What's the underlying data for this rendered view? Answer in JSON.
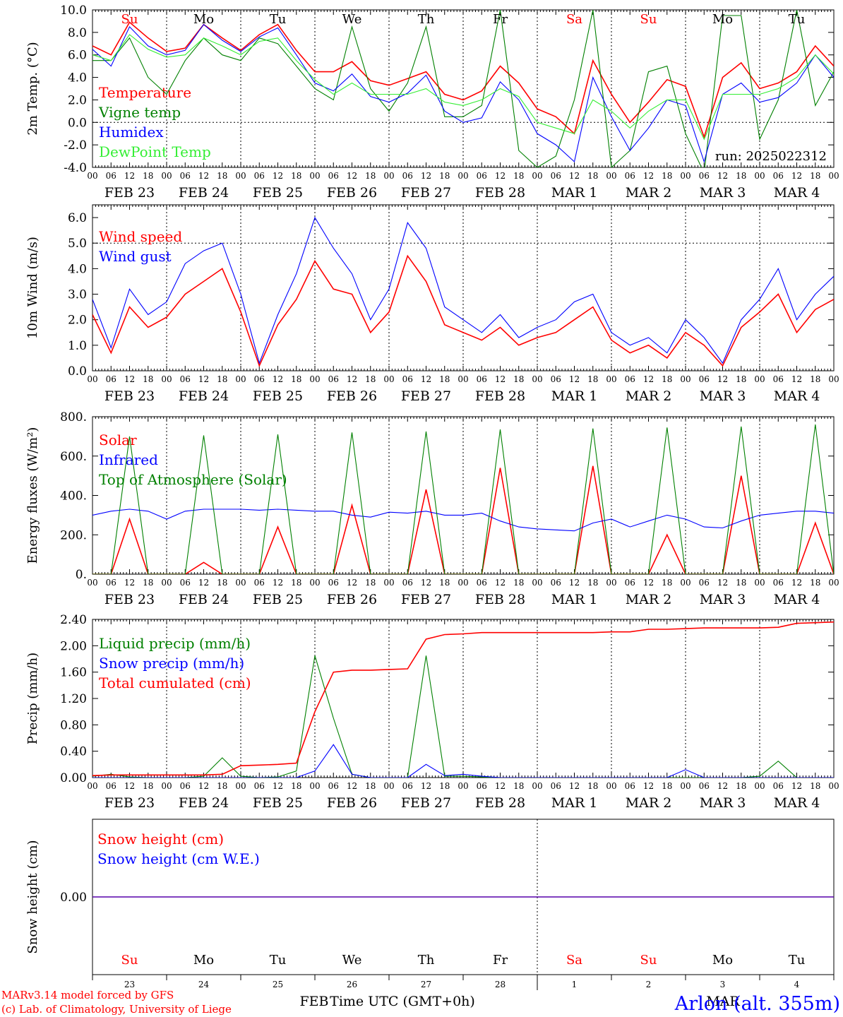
{
  "axis_x": {
    "tick_labels": [
      "00",
      "06",
      "12",
      "18"
    ],
    "date_labels": [
      "FEB 23",
      "FEB 24",
      "FEB 25",
      "FEB 26",
      "FEB 27",
      "FEB 28",
      "MAR  1",
      "MAR  2",
      "MAR  3",
      "MAR  4"
    ],
    "weekdays": [
      "Su",
      "Mo",
      "Tu",
      "We",
      "Th",
      "Fr",
      "Sa",
      "Su",
      "Mo",
      "Tu"
    ],
    "weekend_flags": [
      true,
      false,
      false,
      false,
      false,
      false,
      true,
      true,
      false,
      false
    ],
    "day_numbers": [
      "23",
      "24",
      "25",
      "26",
      "27",
      "28",
      "1",
      "2",
      "3",
      "4"
    ],
    "xlabel": "Time UTC (GMT+0h)",
    "month_labels": [
      "FEB",
      "MAR"
    ]
  },
  "footer": {
    "credit_line1": "MARv3.14 model forced by GFS",
    "credit_line2": "(c) Lab. of Climatology, University of Liege",
    "location": "Arlon (alt. 355m)"
  },
  "colors": {
    "red": "#ff0000",
    "green": "#008000",
    "blue": "#0000ff",
    "lime": "#33ee33",
    "black": "#000000"
  },
  "chart_data": [
    {
      "type": "line",
      "ylabel": "2m Temp. (°C)",
      "ylim": [
        -4,
        10
      ],
      "y_ticks": [
        "-4.0",
        "-2.0",
        "0.0",
        "2.0",
        "4.0",
        "6.0",
        "8.0",
        "10.0"
      ],
      "ref_lines": [
        0
      ],
      "annotation": "run: 2025022312",
      "x": [
        0,
        6,
        12,
        18,
        24,
        30,
        36,
        42,
        48,
        54,
        60,
        66,
        72,
        78,
        84,
        90,
        96,
        102,
        108,
        114,
        120,
        126,
        132,
        138,
        144,
        150,
        156,
        162,
        168,
        174,
        180,
        186,
        192,
        198,
        204,
        210,
        216,
        222,
        228,
        234,
        240
      ],
      "series": [
        {
          "name": "Temperature",
          "color": "red",
          "values": [
            6.8,
            6.0,
            8.9,
            7.5,
            6.3,
            6.6,
            8.7,
            7.5,
            6.4,
            7.8,
            8.7,
            6.4,
            4.5,
            4.5,
            5.4,
            3.7,
            3.3,
            3.9,
            4.5,
            2.5,
            2.0,
            2.8,
            5.0,
            3.5,
            1.2,
            0.5,
            -1.0,
            5.5,
            2.5,
            0.0,
            1.8,
            3.8,
            3.2,
            -1.3,
            4.0,
            5.3,
            3.0,
            3.5,
            4.5,
            6.8,
            5.0
          ]
        },
        {
          "name": "Vigne temp",
          "color": "green",
          "values": [
            5.5,
            5.5,
            7.5,
            4.0,
            2.5,
            5.5,
            7.5,
            6.0,
            5.5,
            7.5,
            7.0,
            5.0,
            3.0,
            2.0,
            8.5,
            3.0,
            1.0,
            3.5,
            8.5,
            0.5,
            0.5,
            1.5,
            10.0,
            -2.5,
            -4.0,
            -3.0,
            2.0,
            10.0,
            -4.0,
            -2.5,
            4.5,
            5.0,
            -1.0,
            -4.5,
            9.5,
            9.5,
            -1.5,
            2.0,
            10.0,
            1.5,
            4.5
          ]
        },
        {
          "name": "Humidex",
          "color": "blue",
          "values": [
            6.5,
            5.0,
            8.5,
            6.8,
            6.0,
            6.4,
            8.7,
            7.3,
            6.3,
            7.6,
            8.4,
            6.0,
            3.5,
            2.8,
            4.3,
            2.3,
            1.8,
            2.6,
            4.2,
            1.0,
            0.0,
            0.4,
            3.6,
            2.0,
            -1.0,
            -2.0,
            -3.5,
            4.0,
            0.5,
            -2.5,
            -0.5,
            2.0,
            1.5,
            -3.5,
            2.5,
            3.5,
            1.8,
            2.2,
            3.5,
            6.0,
            4.0
          ]
        },
        {
          "name": "DewPoint Temp",
          "color": "lime",
          "values": [
            6.0,
            5.5,
            7.8,
            6.5,
            5.8,
            6.0,
            7.5,
            6.8,
            6.0,
            7.2,
            7.5,
            5.5,
            3.8,
            2.5,
            3.5,
            2.5,
            2.5,
            2.5,
            3.0,
            1.8,
            1.5,
            2.0,
            3.0,
            2.3,
            0.0,
            -0.5,
            -1.0,
            2.0,
            1.0,
            -0.5,
            1.0,
            2.0,
            2.0,
            -1.5,
            2.5,
            2.5,
            2.5,
            3.0,
            4.0,
            6.0,
            4.3
          ]
        }
      ]
    },
    {
      "type": "line",
      "ylabel": "10m Wind (m/s)",
      "ylim": [
        0,
        6.5
      ],
      "y_ticks": [
        "0.0",
        "1.0",
        "2.0",
        "3.0",
        "4.0",
        "5.0",
        "6.0"
      ],
      "ref_lines": [
        5
      ],
      "x": [
        0,
        6,
        12,
        18,
        24,
        30,
        36,
        42,
        48,
        54,
        60,
        66,
        72,
        78,
        84,
        90,
        96,
        102,
        108,
        114,
        120,
        126,
        132,
        138,
        144,
        150,
        156,
        162,
        168,
        174,
        180,
        186,
        192,
        198,
        204,
        210,
        216,
        222,
        228,
        234,
        240
      ],
      "series": [
        {
          "name": "Wind speed",
          "color": "red",
          "values": [
            2.2,
            0.7,
            2.5,
            1.7,
            2.1,
            3.0,
            3.5,
            4.0,
            2.3,
            0.2,
            1.8,
            2.8,
            4.3,
            3.2,
            3.0,
            1.5,
            2.3,
            4.5,
            3.5,
            1.8,
            1.5,
            1.2,
            1.7,
            1.0,
            1.3,
            1.5,
            2.0,
            2.5,
            1.2,
            0.7,
            1.0,
            0.5,
            1.5,
            1.0,
            0.2,
            1.7,
            2.3,
            3.0,
            1.5,
            2.4,
            2.8
          ]
        },
        {
          "name": "Wind gust",
          "color": "blue",
          "values": [
            2.8,
            0.9,
            3.2,
            2.2,
            2.7,
            4.2,
            4.7,
            5.0,
            3.0,
            0.3,
            2.2,
            3.8,
            6.0,
            4.8,
            3.8,
            2.0,
            3.2,
            5.8,
            4.8,
            2.5,
            2.0,
            1.5,
            2.2,
            1.3,
            1.7,
            2.0,
            2.7,
            3.0,
            1.5,
            1.0,
            1.3,
            0.7,
            2.0,
            1.3,
            0.3,
            2.0,
            2.8,
            4.0,
            2.0,
            3.0,
            3.7
          ]
        }
      ]
    },
    {
      "type": "line",
      "ylabel": "Energy fluxes (W/m²)",
      "ylim": [
        0,
        800
      ],
      "y_ticks": [
        "0.",
        "200.",
        "400.",
        "600.",
        "800."
      ],
      "x": [
        0,
        6,
        12,
        18,
        24,
        30,
        36,
        42,
        48,
        54,
        60,
        66,
        72,
        78,
        84,
        90,
        96,
        102,
        108,
        114,
        120,
        126,
        132,
        138,
        144,
        150,
        156,
        162,
        168,
        174,
        180,
        186,
        192,
        198,
        204,
        210,
        216,
        222,
        228,
        234,
        240
      ],
      "series": [
        {
          "name": "Solar",
          "color": "red",
          "values": [
            0,
            0,
            280,
            0,
            0,
            0,
            60,
            0,
            0,
            0,
            240,
            0,
            0,
            0,
            350,
            0,
            0,
            0,
            430,
            0,
            0,
            0,
            540,
            0,
            0,
            0,
            0,
            550,
            0,
            0,
            0,
            200,
            0,
            0,
            0,
            500,
            0,
            0,
            0,
            260,
            0
          ]
        },
        {
          "name": "Infrared",
          "color": "blue",
          "values": [
            300,
            320,
            330,
            320,
            280,
            320,
            330,
            330,
            330,
            325,
            330,
            325,
            320,
            320,
            300,
            290,
            315,
            310,
            320,
            300,
            300,
            310,
            270,
            240,
            230,
            225,
            220,
            260,
            280,
            240,
            270,
            300,
            280,
            240,
            235,
            270,
            300,
            310,
            320,
            320,
            310
          ]
        },
        {
          "name": "Top of Atmosphere (Solar)",
          "color": "green",
          "values": [
            0,
            0,
            700,
            0,
            0,
            0,
            705,
            0,
            0,
            0,
            710,
            0,
            0,
            0,
            720,
            0,
            0,
            0,
            725,
            0,
            0,
            0,
            735,
            0,
            0,
            0,
            0,
            740,
            0,
            0,
            0,
            745,
            0,
            0,
            0,
            750,
            0,
            0,
            0,
            760,
            0
          ]
        }
      ]
    },
    {
      "type": "line",
      "ylabel": "Precip (mm/h)",
      "ylim": [
        0,
        2.4
      ],
      "y_ticks": [
        "0.00",
        "0.40",
        "0.80",
        "1.20",
        "1.60",
        "2.00",
        "2.40"
      ],
      "x": [
        0,
        6,
        12,
        18,
        24,
        30,
        36,
        42,
        48,
        54,
        60,
        66,
        72,
        78,
        84,
        90,
        96,
        102,
        108,
        114,
        120,
        126,
        132,
        138,
        144,
        150,
        156,
        162,
        168,
        174,
        180,
        186,
        192,
        198,
        204,
        210,
        216,
        222,
        228,
        234,
        240
      ],
      "series": [
        {
          "name": "Liquid precip (mm/h)",
          "color": "green",
          "values": [
            0.02,
            0.05,
            0.01,
            0.0,
            0.0,
            0.0,
            0.02,
            0.3,
            0.02,
            0.0,
            0.01,
            0.1,
            1.85,
            0.9,
            0.05,
            0.0,
            0.0,
            0.0,
            1.85,
            0.02,
            0.02,
            0.01,
            0.0,
            0.0,
            0.0,
            0.0,
            0.0,
            0.0,
            0.0,
            0.0,
            0.0,
            0.0,
            0.0,
            0.0,
            0.0,
            0.0,
            0.02,
            0.25,
            0.0,
            0.0,
            0.0
          ]
        },
        {
          "name": "Snow precip (mm/h)",
          "color": "blue",
          "values": [
            0.0,
            0.0,
            0.0,
            0.0,
            0.0,
            0.0,
            0.0,
            0.0,
            0.0,
            0.0,
            0.0,
            0.0,
            0.1,
            0.5,
            0.05,
            0.0,
            0.0,
            0.0,
            0.2,
            0.03,
            0.05,
            0.02,
            0.0,
            0.0,
            0.0,
            0.0,
            0.0,
            0.0,
            0.0,
            0.0,
            0.0,
            0.0,
            0.12,
            0.0,
            0.0,
            0.0,
            0.0,
            0.0,
            0.0,
            0.0,
            0.0
          ]
        },
        {
          "name": "Total cumulated (cm)",
          "color": "red",
          "values": [
            0.03,
            0.04,
            0.04,
            0.04,
            0.04,
            0.04,
            0.04,
            0.05,
            0.18,
            0.19,
            0.2,
            0.22,
            1.0,
            1.6,
            1.63,
            1.63,
            1.64,
            1.65,
            2.1,
            2.17,
            2.18,
            2.2,
            2.2,
            2.2,
            2.2,
            2.2,
            2.2,
            2.2,
            2.21,
            2.21,
            2.25,
            2.25,
            2.26,
            2.27,
            2.27,
            2.27,
            2.27,
            2.28,
            2.34,
            2.35,
            2.36
          ]
        }
      ]
    },
    {
      "type": "line",
      "ylabel": "Snow height (cm)",
      "ylim": [
        -1,
        1
      ],
      "y_ticks": [
        "0.00"
      ],
      "x": [
        0,
        240
      ],
      "series": [
        {
          "name": "Snow height (cm)",
          "color": "red",
          "values": [
            0,
            0
          ]
        },
        {
          "name": "Snow height (cm W.E.)",
          "color": "blue",
          "values": [
            0,
            0
          ]
        }
      ]
    }
  ]
}
